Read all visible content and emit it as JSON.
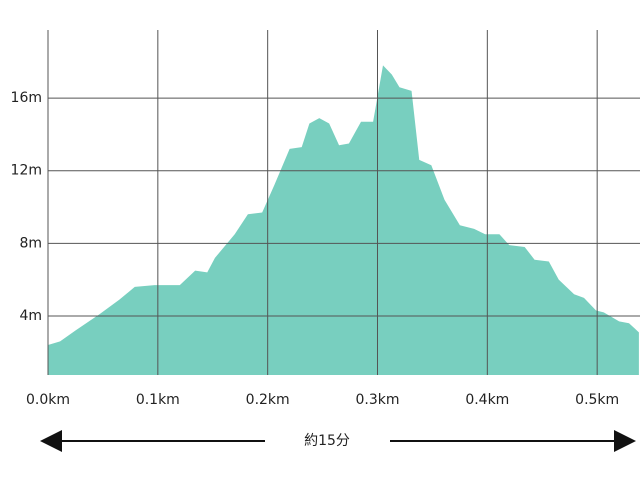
{
  "chart_data": {
    "type": "area",
    "x": [
      0,
      0.011,
      0.025,
      0.047,
      0.065,
      0.079,
      0.097,
      0.12,
      0.134,
      0.145,
      0.152,
      0.17,
      0.182,
      0.195,
      0.206,
      0.22,
      0.231,
      0.238,
      0.247,
      0.256,
      0.265,
      0.274,
      0.285,
      0.296,
      0.305,
      0.313,
      0.32,
      0.331,
      0.338,
      0.349,
      0.361,
      0.375,
      0.388,
      0.398,
      0.411,
      0.42,
      0.434,
      0.443,
      0.456,
      0.465,
      0.479,
      0.488,
      0.499,
      0.506,
      0.52,
      0.529,
      0.538
    ],
    "values": [
      2.4,
      2.6,
      3.2,
      4.1,
      4.9,
      5.6,
      5.7,
      5.7,
      6.5,
      6.4,
      7.2,
      8.5,
      9.6,
      9.7,
      11.2,
      13.2,
      13.3,
      14.6,
      14.9,
      14.6,
      13.4,
      13.5,
      14.7,
      14.7,
      17.8,
      17.3,
      16.6,
      16.4,
      12.6,
      12.3,
      10.4,
      9.0,
      8.8,
      8.5,
      8.5,
      7.9,
      7.8,
      7.1,
      7.0,
      6.0,
      5.2,
      5.0,
      4.3,
      4.2,
      3.7,
      3.6,
      3.1
    ],
    "color": "#78cfbf",
    "xlim": [
      0,
      0.539
    ],
    "ylim": [
      0.75,
      19.75
    ],
    "xticks": [
      {
        "value": 0,
        "label": "0.0km"
      },
      {
        "value": 0.1,
        "label": "0.1km"
      },
      {
        "value": 0.2,
        "label": "0.2km"
      },
      {
        "value": 0.3,
        "label": "0.3km"
      },
      {
        "value": 0.4,
        "label": "0.4km"
      },
      {
        "value": 0.5,
        "label": "0.5km"
      }
    ],
    "yticks": [
      {
        "value": 4,
        "label": "4m"
      },
      {
        "value": 8,
        "label": "8m"
      },
      {
        "value": 12,
        "label": "12m"
      },
      {
        "value": 16,
        "label": "16m"
      }
    ],
    "grid": true,
    "annotation": "約15分"
  }
}
